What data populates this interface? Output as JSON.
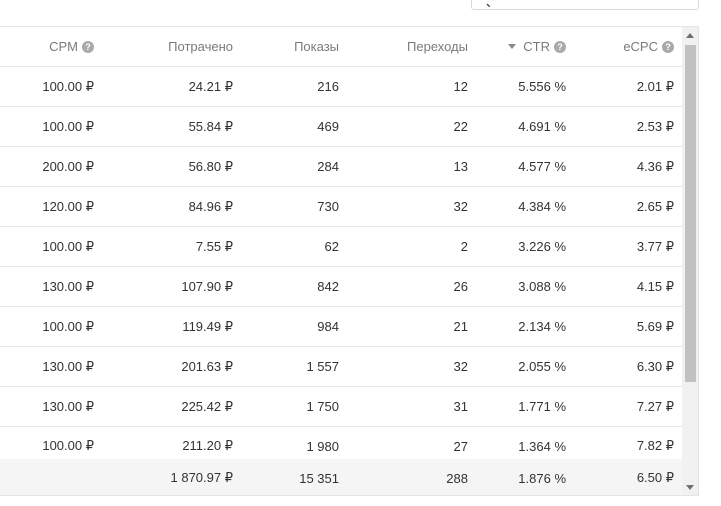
{
  "columns": {
    "cpm": "CPM",
    "spent": "Потрачено",
    "shows": "Показы",
    "clicks": "Переходы",
    "ctr": "CTR",
    "ecpc": "eCPC"
  },
  "help_glyph": "?",
  "rows": [
    {
      "cpm": "100.00 ₽",
      "spent": "24.21 ₽",
      "shows": "216",
      "clicks": "12",
      "ctr": "5.556 %",
      "ecpc": "2.01 ₽"
    },
    {
      "cpm": "100.00 ₽",
      "spent": "55.84 ₽",
      "shows": "469",
      "clicks": "22",
      "ctr": "4.691 %",
      "ecpc": "2.53 ₽"
    },
    {
      "cpm": "200.00 ₽",
      "spent": "56.80 ₽",
      "shows": "284",
      "clicks": "13",
      "ctr": "4.577 %",
      "ecpc": "4.36 ₽"
    },
    {
      "cpm": "120.00 ₽",
      "spent": "84.96 ₽",
      "shows": "730",
      "clicks": "32",
      "ctr": "4.384 %",
      "ecpc": "2.65 ₽"
    },
    {
      "cpm": "100.00 ₽",
      "spent": "7.55 ₽",
      "shows": "62",
      "clicks": "2",
      "ctr": "3.226 %",
      "ecpc": "3.77 ₽"
    },
    {
      "cpm": "130.00 ₽",
      "spent": "107.90 ₽",
      "shows": "842",
      "clicks": "26",
      "ctr": "3.088 %",
      "ecpc": "4.15 ₽"
    },
    {
      "cpm": "100.00 ₽",
      "spent": "119.49 ₽",
      "shows": "984",
      "clicks": "21",
      "ctr": "2.134 %",
      "ecpc": "5.69 ₽"
    },
    {
      "cpm": "130.00 ₽",
      "spent": "201.63 ₽",
      "shows": "1 557",
      "clicks": "32",
      "ctr": "2.055 %",
      "ecpc": "6.30 ₽"
    },
    {
      "cpm": "130.00 ₽",
      "spent": "225.42 ₽",
      "shows": "1 750",
      "clicks": "31",
      "ctr": "1.771 %",
      "ecpc": "7.27 ₽"
    },
    {
      "cpm": "100.00 ₽",
      "spent": "211.20 ₽",
      "shows": "1 980",
      "clicks": "27",
      "ctr": "1.364 %",
      "ecpc": "7.82 ₽"
    }
  ],
  "totals": {
    "spent": "1 870.97 ₽",
    "shows": "15 351",
    "clicks": "288",
    "ctr": "1.876 %",
    "ecpc": "6.50 ₽"
  }
}
